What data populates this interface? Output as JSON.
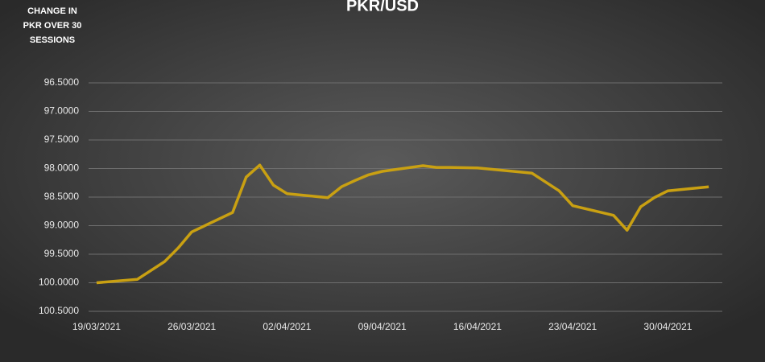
{
  "chart_data": {
    "type": "line",
    "title": "PKR/USD",
    "annotation": [
      "CHANGE IN",
      "PKR OVER 30",
      "SESSIONS"
    ],
    "x": [
      "19/03/2021",
      "22/03/2021",
      "24/03/2021",
      "25/03/2021",
      "26/03/2021",
      "29/03/2021",
      "30/03/2021",
      "31/03/2021",
      "01/04/2021",
      "02/04/2021",
      "05/04/2021",
      "06/04/2021",
      "07/04/2021",
      "08/04/2021",
      "09/04/2021",
      "12/04/2021",
      "13/04/2021",
      "14/04/2021",
      "16/04/2021",
      "20/04/2021",
      "22/04/2021",
      "23/04/2021",
      "26/04/2021",
      "27/04/2021",
      "28/04/2021",
      "29/04/2021",
      "30/04/2021",
      "03/05/2021"
    ],
    "series": [
      {
        "name": "PKR/USD",
        "color": "#c9a012",
        "values": [
          100.0,
          99.94,
          99.63,
          99.39,
          99.11,
          98.77,
          98.15,
          97.94,
          98.29,
          98.44,
          98.51,
          98.32,
          98.21,
          98.11,
          98.05,
          97.95,
          97.98,
          97.98,
          97.99,
          98.08,
          98.39,
          98.65,
          98.82,
          99.08,
          98.67,
          98.51,
          98.39,
          98.32
        ]
      }
    ],
    "xlim": [
      "18/03/2021",
      "04/05/2021"
    ],
    "xticks": [
      "19/03/2021",
      "26/03/2021",
      "02/04/2021",
      "09/04/2021",
      "16/04/2021",
      "23/04/2021",
      "30/04/2021"
    ],
    "ylim": [
      100.5,
      96.5
    ],
    "yticks": [
      {
        "value": 96.5,
        "label": "96.5000"
      },
      {
        "value": 97,
        "label": "97.0000"
      },
      {
        "value": 97.5,
        "label": "97.5000"
      },
      {
        "value": 98,
        "label": "98.0000"
      },
      {
        "value": 98.5,
        "label": "98.5000"
      },
      {
        "value": 99,
        "label": "99.0000"
      },
      {
        "value": 99.5,
        "label": "99.5000"
      },
      {
        "value": 100,
        "label": "100.0000"
      },
      {
        "value": 100.5,
        "label": "100.5000"
      }
    ],
    "grid": true
  }
}
